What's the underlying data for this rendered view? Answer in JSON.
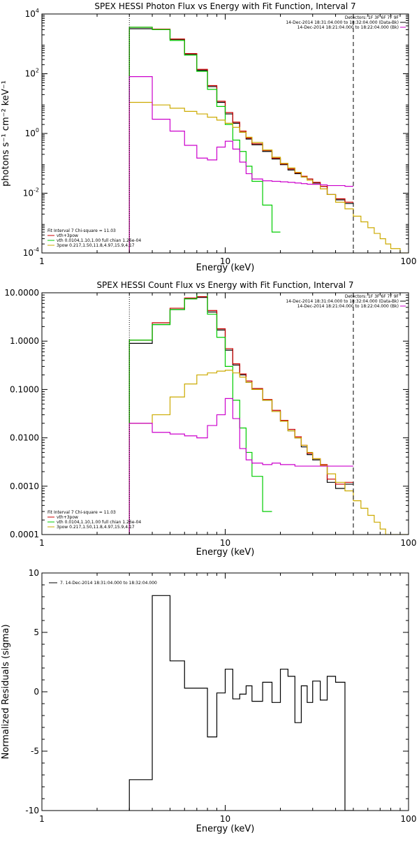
{
  "chart_data": [
    {
      "type": "line",
      "title": "SPEX HESSI Photon Flux vs Energy with Fit Function, Interval 7",
      "xlabel": "Energy (keV)",
      "ylabel": "photons s⁻¹ cm⁻² keV⁻¹",
      "xscale": "log",
      "yscale": "log",
      "xlim": [
        1,
        100
      ],
      "ylim": [
        0.0001,
        10000
      ],
      "xticks": [
        {
          "v": 1,
          "label": "1"
        },
        {
          "v": 10,
          "label": "10"
        },
        {
          "v": 100,
          "label": "100"
        }
      ],
      "yticks": [
        {
          "v": 0.0001,
          "base": "10",
          "exp": "-4"
        },
        {
          "v": 0.01,
          "base": "10",
          "exp": "-2"
        },
        {
          "v": 1,
          "base": "10",
          "exp": "0"
        },
        {
          "v": 100,
          "base": "10",
          "exp": "2"
        },
        {
          "v": 10000,
          "base": "10",
          "exp": "4"
        }
      ],
      "vlines": [
        {
          "x": 3,
          "color": "#000000",
          "dash": "1,2"
        },
        {
          "x": 50,
          "color": "#000000",
          "dash": "6,4"
        }
      ],
      "legend_topright": [
        {
          "text": "Detectors: 1F 3F 6F 7F 9F",
          "color": "",
          "placement": "top-right"
        },
        {
          "text": "14-Dec-2014 18:31:04.000 to 18:32:04.000 (Data-Bk)",
          "color": "#000000"
        },
        {
          "text": "14-Dec-2014 18:21:04.000 to 18:22:04.000 (Bk)",
          "color": "#cc00cc"
        }
      ],
      "legend_bottomleft": [
        {
          "text": "Fit Interval 7   Chi-square = 11.03",
          "color": ""
        },
        {
          "text": "vth+3pow",
          "color": "#cc0000"
        },
        {
          "text": "vth 0.0104,1.10,1.00  full chian 1.26e-04",
          "color": "#00cc00"
        },
        {
          "text": "3pow 0.217,1.50,11.8,4.97,15.9,4.17",
          "color": "#ccaa00"
        }
      ],
      "series": [
        {
          "color": "#000000",
          "edges": [
            3,
            4,
            5,
            6,
            7,
            8,
            9,
            10,
            11,
            12,
            13,
            14,
            16,
            18,
            20,
            22,
            24,
            26,
            28,
            30,
            33,
            36,
            40,
            45,
            50
          ],
          "values": [
            3200,
            3000,
            1400,
            450,
            130,
            37,
            11,
            4.5,
            2.2,
            1.1,
            0.65,
            0.42,
            0.25,
            0.14,
            0.09,
            0.06,
            0.045,
            0.035,
            0.03,
            0.022,
            0.017,
            0.009,
            0.006,
            0.0045
          ]
        },
        {
          "color": "#cc0000",
          "edges": [
            3,
            4,
            5,
            6,
            7,
            8,
            9,
            10,
            11,
            12,
            13,
            14,
            16,
            18,
            20,
            22,
            24,
            26,
            28,
            30,
            33,
            36,
            40,
            45,
            50
          ],
          "values": [
            3600,
            3100,
            1450,
            470,
            140,
            40,
            12,
            5,
            2.4,
            1.2,
            0.7,
            0.45,
            0.27,
            0.15,
            0.095,
            0.065,
            0.048,
            0.037,
            0.03,
            0.023,
            0.017,
            0.009,
            0.0065,
            0.005
          ]
        },
        {
          "color": "#00cc00",
          "edges": [
            3,
            4,
            5,
            6,
            7,
            8,
            9,
            10,
            11,
            12,
            13,
            14,
            16,
            18,
            20
          ],
          "values": [
            3600,
            3000,
            1300,
            420,
            120,
            30,
            8,
            2,
            0.6,
            0.25,
            0.08,
            0.025,
            0.004,
            0.0005
          ]
        },
        {
          "color": "#ccaa00",
          "edges": [
            3,
            4,
            5,
            6,
            7,
            8,
            9,
            10,
            11,
            12,
            13,
            14,
            16,
            18,
            20,
            22,
            24,
            26,
            28,
            30,
            33,
            36,
            40,
            45,
            50,
            55,
            60,
            65,
            70,
            75,
            80,
            90,
            100
          ],
          "values": [
            11,
            9,
            7,
            5.5,
            4.5,
            3.5,
            2.8,
            2.2,
            1.6,
            1.1,
            0.75,
            0.5,
            0.28,
            0.16,
            0.1,
            0.07,
            0.05,
            0.035,
            0.027,
            0.02,
            0.014,
            0.009,
            0.005,
            0.003,
            0.0017,
            0.0011,
            0.0007,
            0.00045,
            0.0003,
            0.0002,
            0.00014,
            0.0001
          ]
        },
        {
          "color": "#cc00cc",
          "edges": [
            3,
            4,
            5,
            6,
            7,
            8,
            9,
            10,
            11,
            12,
            13,
            14,
            16,
            18,
            20,
            22,
            24,
            26,
            28,
            30,
            33,
            36,
            40,
            45,
            50
          ],
          "values": [
            80,
            3,
            1.2,
            0.4,
            0.15,
            0.13,
            0.35,
            0.55,
            0.3,
            0.11,
            0.045,
            0.03,
            0.026,
            0.025,
            0.024,
            0.023,
            0.022,
            0.021,
            0.02,
            0.02,
            0.019,
            0.018,
            0.018,
            0.017
          ]
        }
      ]
    },
    {
      "type": "line",
      "title": "SPEX HESSI Count Flux vs Energy with Fit Function, Interval 7",
      "xlabel": "Energy (keV)",
      "ylabel": "",
      "xscale": "log",
      "yscale": "log",
      "xlim": [
        1,
        100
      ],
      "ylim": [
        0.0001,
        10
      ],
      "xticks": [
        {
          "v": 1,
          "label": "1"
        },
        {
          "v": 10,
          "label": "10"
        },
        {
          "v": 100,
          "label": "100"
        }
      ],
      "yticks": [
        {
          "v": 0.0001,
          "label": "0.0001"
        },
        {
          "v": 0.001,
          "label": "0.0010"
        },
        {
          "v": 0.01,
          "label": "0.0100"
        },
        {
          "v": 0.1,
          "label": "0.1000"
        },
        {
          "v": 1,
          "label": "1.0000"
        },
        {
          "v": 10,
          "label": "10.0000"
        }
      ],
      "vlines": [
        {
          "x": 3,
          "color": "#000000",
          "dash": "1,2"
        },
        {
          "x": 50,
          "color": "#000000",
          "dash": "6,4"
        }
      ],
      "legend_topright": [
        {
          "text": "Detectors: 1F 3F 6F 7F 9F",
          "color": ""
        },
        {
          "text": "14-Dec-2014 18:31:04.000 to 18:32:04.000 (Data-Bk)",
          "color": "#000000"
        },
        {
          "text": "14-Dec-2014 18:21:04.000 to 18:22:04.000 (Bk)",
          "color": "#cc00cc"
        }
      ],
      "legend_bottomleft": [
        {
          "text": "Fit Interval 7   Chi-square = 11.03",
          "color": ""
        },
        {
          "text": "vth+3pow",
          "color": "#cc0000"
        },
        {
          "text": "vth 0.0104,1.10,1.00  full chian 1.26e-04",
          "color": "#00cc00"
        },
        {
          "text": "3pow 0.217,1.50,11.8,4.97,15.9,4.17",
          "color": "#ccaa00"
        }
      ],
      "series": [
        {
          "color": "#000000",
          "edges": [
            3,
            4,
            5,
            6,
            7,
            8,
            9,
            10,
            11,
            12,
            13,
            14,
            16,
            18,
            20,
            22,
            24,
            26,
            28,
            30,
            33,
            36,
            40,
            45,
            50
          ],
          "values": [
            0.9,
            2.2,
            4.5,
            7.5,
            8,
            4,
            1.7,
            0.65,
            0.32,
            0.2,
            0.14,
            0.1,
            0.06,
            0.035,
            0.022,
            0.014,
            0.01,
            0.0065,
            0.0045,
            0.0035,
            0.0027,
            0.0012,
            0.0009,
            0.0011
          ]
        },
        {
          "color": "#cc0000",
          "edges": [
            3,
            4,
            5,
            6,
            7,
            8,
            9,
            10,
            11,
            12,
            13,
            14,
            16,
            18,
            20,
            22,
            24,
            26,
            28,
            30,
            33,
            36,
            40,
            45,
            50
          ],
          "values": [
            1.05,
            2.4,
            4.8,
            7.8,
            8.3,
            4.3,
            1.8,
            0.7,
            0.34,
            0.21,
            0.15,
            0.105,
            0.062,
            0.037,
            0.023,
            0.015,
            0.0105,
            0.007,
            0.0048,
            0.0037,
            0.0028,
            0.0014,
            0.0011,
            0.0012
          ]
        },
        {
          "color": "#00cc00",
          "edges": [
            3,
            4,
            5,
            6,
            7,
            8,
            9,
            10,
            11,
            12,
            13,
            14,
            16,
            18
          ],
          "values": [
            1.05,
            2.2,
            4.5,
            7.5,
            10,
            3.6,
            1.2,
            0.3,
            0.06,
            0.016,
            0.005,
            0.0016,
            0.0003
          ]
        },
        {
          "color": "#ccaa00",
          "edges": [
            3,
            4,
            5,
            6,
            7,
            8,
            9,
            10,
            11,
            12,
            13,
            14,
            16,
            18,
            20,
            22,
            24,
            26,
            28,
            30,
            33,
            36,
            40,
            45,
            50,
            55,
            60,
            65,
            70,
            75,
            80,
            90,
            100
          ],
          "values": [
            0.02,
            0.03,
            0.07,
            0.13,
            0.2,
            0.22,
            0.24,
            0.25,
            0.22,
            0.18,
            0.14,
            0.1,
            0.06,
            0.035,
            0.022,
            0.014,
            0.01,
            0.007,
            0.005,
            0.0037,
            0.0027,
            0.0018,
            0.0012,
            0.0008,
            0.0005,
            0.00035,
            0.00025,
            0.00018,
            0.00013,
            0.0001,
            0.0001,
            0.0001
          ]
        },
        {
          "color": "#cc00cc",
          "edges": [
            3,
            4,
            5,
            6,
            7,
            8,
            9,
            10,
            11,
            12,
            13,
            14,
            16,
            18,
            20,
            22,
            24,
            26,
            28,
            30,
            33,
            36,
            40,
            45,
            50
          ],
          "values": [
            0.02,
            0.013,
            0.012,
            0.011,
            0.01,
            0.018,
            0.03,
            0.065,
            0.025,
            0.006,
            0.0035,
            0.003,
            0.0028,
            0.003,
            0.0028,
            0.0028,
            0.0026,
            0.0026,
            0.0026,
            0.0026,
            0.0026,
            0.0026,
            0.0026,
            0.0026
          ]
        }
      ]
    },
    {
      "type": "line",
      "title": "",
      "xlabel": "Energy (keV)",
      "ylabel": "Normalized Residuals (sigma)",
      "xscale": "log",
      "yscale": "linear",
      "xlim": [
        1,
        100
      ],
      "ylim": [
        -10,
        10
      ],
      "xticks": [
        {
          "v": 1,
          "label": "1"
        },
        {
          "v": 10,
          "label": "10"
        },
        {
          "v": 100,
          "label": "100"
        }
      ],
      "yticks": [
        {
          "v": -10,
          "label": "-10"
        },
        {
          "v": -5,
          "label": "-5"
        },
        {
          "v": 0,
          "label": "0"
        },
        {
          "v": 5,
          "label": "5"
        },
        {
          "v": 10,
          "label": "10"
        }
      ],
      "legend_topleft": [
        {
          "text": "7. 14-Dec-2014 18:31:04.000 to 18:32:04.000",
          "color": "#000000"
        }
      ],
      "series": [
        {
          "color": "#000000",
          "edges": [
            3,
            4,
            5,
            6,
            7,
            8,
            9,
            10,
            11,
            12,
            13,
            14,
            16,
            18,
            20,
            22,
            24,
            26,
            28,
            30,
            33,
            36,
            40,
            45,
            50
          ],
          "values": [
            -7.4,
            8.1,
            2.6,
            0.3,
            0.3,
            -3.8,
            -0.1,
            1.9,
            -0.6,
            -0.2,
            0.5,
            -0.8,
            0.8,
            -0.9,
            1.9,
            1.3,
            -2.6,
            0.5,
            -0.9,
            0.9,
            -0.7,
            1.3,
            0.8,
            -10.5
          ]
        }
      ]
    }
  ]
}
